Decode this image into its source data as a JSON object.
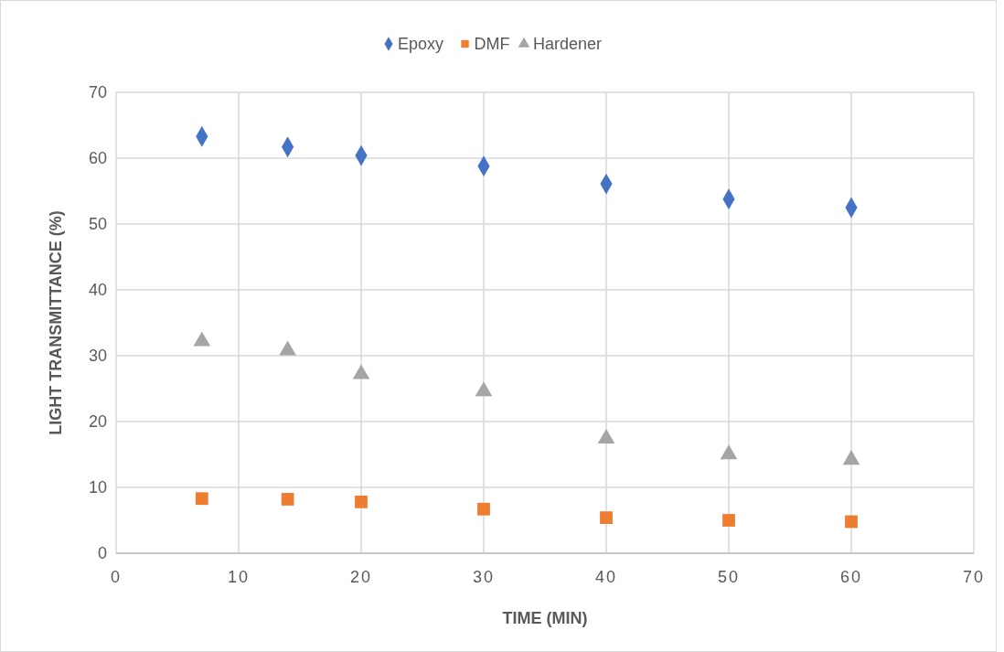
{
  "chart_data": {
    "type": "scatter",
    "xlabel": "TIME (MIN)",
    "ylabel": "LIGHT TRANSMITTANCE (%)",
    "x": [
      7,
      14,
      20,
      30,
      40,
      50,
      60
    ],
    "series": [
      {
        "name": "Epoxy",
        "color": "#4472c4",
        "marker": "diamond",
        "values": [
          63.3,
          61.7,
          60.4,
          58.8,
          56.1,
          53.8,
          52.5
        ]
      },
      {
        "name": "DMF",
        "color": "#ed7d31",
        "marker": "square",
        "values": [
          8.3,
          8.2,
          7.8,
          6.7,
          5.4,
          5.0,
          4.8
        ]
      },
      {
        "name": "Hardener",
        "color": "#a5a5a5",
        "marker": "triangle",
        "values": [
          32.2,
          30.8,
          27.2,
          24.6,
          17.4,
          15.0,
          14.2
        ]
      }
    ],
    "xlim": [
      0,
      70
    ],
    "xticks": [
      0,
      10,
      20,
      30,
      40,
      50,
      60,
      70
    ],
    "ylim": [
      0,
      70
    ],
    "yticks": [
      0,
      10,
      20,
      30,
      40,
      50,
      60,
      70
    ],
    "grid": true,
    "legend": "top"
  }
}
